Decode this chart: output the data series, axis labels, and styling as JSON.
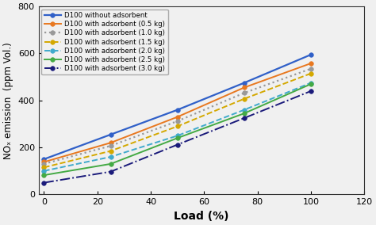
{
  "x": [
    0,
    25,
    50,
    75,
    100
  ],
  "series": [
    {
      "label": "D100 without adsorbent",
      "y": [
        150,
        255,
        360,
        475,
        595
      ],
      "color": "#3060c8",
      "linestyle": "-",
      "marker": "o",
      "linewidth": 1.6,
      "markersize": 4.0
    },
    {
      "label": "D100 with adsorbent (0.5 kg)",
      "y": [
        138,
        220,
        330,
        455,
        558
      ],
      "color": "#e87820",
      "linestyle": "-",
      "marker": "o",
      "linewidth": 1.4,
      "markersize": 4.0
    },
    {
      "label": "D100 with adsorbent (1.0 kg)",
      "y": [
        130,
        207,
        312,
        432,
        535
      ],
      "color": "#999999",
      "linestyle": ":",
      "marker": "o",
      "linewidth": 1.6,
      "markersize": 4.0
    },
    {
      "label": "D100 with adsorbent (1.5 kg)",
      "y": [
        115,
        185,
        290,
        407,
        515
      ],
      "color": "#d4a800",
      "linestyle": "--",
      "marker": "o",
      "linewidth": 1.4,
      "markersize": 4.0
    },
    {
      "label": "D100 with adsorbent (2.0 kg)",
      "y": [
        100,
        160,
        250,
        360,
        475
      ],
      "color": "#40aacc",
      "linestyle": "--",
      "marker": "o",
      "linewidth": 1.4,
      "markersize": 4.0
    },
    {
      "label": "D100 with adsorbent (2.5 kg)",
      "y": [
        82,
        130,
        240,
        345,
        470
      ],
      "color": "#44aa44",
      "linestyle": "-",
      "marker": "o",
      "linewidth": 1.4,
      "markersize": 4.0
    },
    {
      "label": "D100 with adsorbent (3.0 kg)",
      "y": [
        50,
        97,
        212,
        325,
        440
      ],
      "color": "#1a1a7a",
      "linestyle": "-.",
      "marker": "o",
      "linewidth": 1.4,
      "markersize": 4.0
    }
  ],
  "xlabel": "Load (%)",
  "ylabel": "NOₓ emission  (ppm Vol.)",
  "xlim": [
    -2,
    120
  ],
  "ylim": [
    0,
    800
  ],
  "xticks": [
    0,
    20,
    40,
    60,
    80,
    100,
    120
  ],
  "yticks": [
    0,
    200,
    400,
    600,
    800
  ],
  "background_color": "#f0f0f0",
  "plot_bg": "#f0f0f0",
  "legend_fontsize": 6.2,
  "xlabel_fontsize": 10,
  "ylabel_fontsize": 8.5,
  "tick_fontsize": 8
}
